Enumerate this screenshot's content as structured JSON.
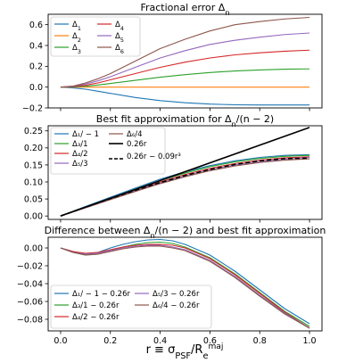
{
  "chart_data": [
    {
      "type": "line",
      "title": "Fractional error Δ",
      "title_sub": "n",
      "ylim": [
        -0.2,
        0.7
      ],
      "yticks": [
        "−0.2",
        "0.0",
        "0.2",
        "0.4",
        "0.6"
      ],
      "xlim": [
        -0.05,
        1.05
      ],
      "legend": "top-left, 2 columns",
      "series": [
        {
          "name": "Δ",
          "sub": "1",
          "color": "#1f77b4",
          "x": [
            0,
            0.05,
            0.1,
            0.15,
            0.2,
            0.3,
            0.4,
            0.5,
            0.6,
            0.7,
            0.8,
            0.9,
            1.0
          ],
          "y": [
            0,
            -0.008,
            -0.02,
            -0.04,
            -0.06,
            -0.1,
            -0.13,
            -0.15,
            -0.163,
            -0.17,
            -0.172,
            -0.172,
            -0.172
          ]
        },
        {
          "name": "Δ",
          "sub": "2",
          "color": "#ff7f0e",
          "x": [
            0,
            1.0
          ],
          "y": [
            0,
            0
          ]
        },
        {
          "name": "Δ",
          "sub": "3",
          "color": "#2ca02c",
          "x": [
            0,
            0.05,
            0.1,
            0.15,
            0.2,
            0.3,
            0.4,
            0.5,
            0.6,
            0.7,
            0.8,
            0.9,
            1.0
          ],
          "y": [
            0,
            0.002,
            0.008,
            0.02,
            0.035,
            0.065,
            0.095,
            0.12,
            0.14,
            0.155,
            0.165,
            0.172,
            0.175
          ]
        },
        {
          "name": "Δ",
          "sub": "4",
          "color": "#d62728",
          "x": [
            0,
            0.05,
            0.1,
            0.15,
            0.2,
            0.3,
            0.4,
            0.5,
            0.6,
            0.7,
            0.8,
            0.9,
            1.0
          ],
          "y": [
            0,
            0.005,
            0.018,
            0.04,
            0.07,
            0.13,
            0.19,
            0.24,
            0.28,
            0.31,
            0.33,
            0.345,
            0.355
          ]
        },
        {
          "name": "Δ",
          "sub": "5",
          "color": "#9467bd",
          "x": [
            0,
            0.05,
            0.1,
            0.15,
            0.2,
            0.3,
            0.4,
            0.5,
            0.6,
            0.7,
            0.8,
            0.9,
            1.0
          ],
          "y": [
            0,
            0.008,
            0.03,
            0.06,
            0.1,
            0.19,
            0.28,
            0.35,
            0.41,
            0.45,
            0.48,
            0.505,
            0.52
          ]
        },
        {
          "name": "Δ",
          "sub": "6",
          "color": "#8c564b",
          "x": [
            0,
            0.05,
            0.1,
            0.15,
            0.2,
            0.3,
            0.4,
            0.5,
            0.6,
            0.7,
            0.8,
            0.9,
            1.0
          ],
          "y": [
            0,
            0.01,
            0.04,
            0.08,
            0.13,
            0.25,
            0.37,
            0.46,
            0.54,
            0.6,
            0.63,
            0.655,
            0.67
          ]
        }
      ]
    },
    {
      "type": "line",
      "title": "Best fit approximation for Δ",
      "title_sub": "n",
      "title_tail": "/(n − 2)",
      "ylim": [
        -0.01,
        0.265
      ],
      "yticks": [
        "0.00",
        "0.05",
        "0.10",
        "0.15",
        "0.20",
        "0.25"
      ],
      "xlim": [
        -0.05,
        1.05
      ],
      "legend": "top-left, 2 columns",
      "series": [
        {
          "label": "Δ₁/ − 1",
          "color": "#1f77b4",
          "x": [
            0,
            0.1,
            0.2,
            0.3,
            0.4,
            0.5,
            0.6,
            0.7,
            0.8,
            0.9,
            1.0
          ],
          "y": [
            0,
            0.028,
            0.055,
            0.082,
            0.108,
            0.13,
            0.148,
            0.162,
            0.172,
            0.178,
            0.18
          ]
        },
        {
          "label": "Δ₃/1",
          "color": "#2ca02c",
          "x": [
            0,
            0.1,
            0.2,
            0.3,
            0.4,
            0.5,
            0.6,
            0.7,
            0.8,
            0.9,
            1.0
          ],
          "y": [
            0,
            0.026,
            0.052,
            0.079,
            0.104,
            0.126,
            0.145,
            0.159,
            0.169,
            0.175,
            0.178
          ]
        },
        {
          "label": "Δ₄/2",
          "color": "#d62728",
          "x": [
            0,
            0.1,
            0.2,
            0.3,
            0.4,
            0.5,
            0.6,
            0.7,
            0.8,
            0.9,
            1.0
          ],
          "y": [
            0,
            0.025,
            0.05,
            0.076,
            0.1,
            0.122,
            0.14,
            0.154,
            0.164,
            0.171,
            0.174
          ]
        },
        {
          "label": "Δ₅/3",
          "color": "#9467bd",
          "x": [
            0,
            0.1,
            0.2,
            0.3,
            0.4,
            0.5,
            0.6,
            0.7,
            0.8,
            0.9,
            1.0
          ],
          "y": [
            0,
            0.024,
            0.049,
            0.074,
            0.097,
            0.118,
            0.136,
            0.15,
            0.16,
            0.167,
            0.172
          ]
        },
        {
          "label": "Δ₆/4",
          "color": "#8c564b",
          "x": [
            0,
            0.1,
            0.2,
            0.3,
            0.4,
            0.5,
            0.6,
            0.7,
            0.8,
            0.9,
            1.0
          ],
          "y": [
            0,
            0.024,
            0.048,
            0.072,
            0.095,
            0.115,
            0.133,
            0.147,
            0.157,
            0.164,
            0.168
          ]
        },
        {
          "label": "0.26r",
          "color": "#000000",
          "lw": 1.6,
          "x": [
            0,
            1.0
          ],
          "y": [
            0,
            0.26
          ]
        },
        {
          "label": "0.26r − 0.09r³",
          "color": "#000000",
          "dash": true,
          "lw": 1.6,
          "x": [
            0,
            0.1,
            0.2,
            0.3,
            0.4,
            0.5,
            0.6,
            0.7,
            0.8,
            0.9,
            1.0
          ],
          "y": [
            0,
            0.0259,
            0.0513,
            0.0756,
            0.0982,
            0.1188,
            0.1366,
            0.1513,
            0.1619,
            0.1684,
            0.17
          ]
        }
      ]
    },
    {
      "type": "line",
      "title": "Difference between Δ",
      "title_sub": "n",
      "title_tail": "/(n − 2) and best fit approximation",
      "ylim": [
        -0.093,
        0.012
      ],
      "yticks": [
        "0.00",
        "−0.02",
        "−0.04",
        "−0.06",
        "−0.08"
      ],
      "xlim": [
        -0.05,
        1.05
      ],
      "xticks": [
        "0.0",
        "0.2",
        "0.4",
        "0.6",
        "0.8",
        "1.0"
      ],
      "xlabel": "r ≡ σPSF/Re^maj",
      "legend": "lower-left, 2 columns",
      "series": [
        {
          "label": "Δ₁/ − 1 − 0.26r",
          "color": "#1f77b4",
          "x": [
            0,
            0.05,
            0.1,
            0.15,
            0.2,
            0.25,
            0.3,
            0.35,
            0.4,
            0.45,
            0.5,
            0.6,
            0.7,
            0.8,
            0.9,
            1.0
          ],
          "y": [
            0,
            -0.004,
            -0.007,
            -0.005,
            0,
            0.004,
            0.007,
            0.009,
            0.0095,
            0.008,
            0.004,
            -0.008,
            -0.026,
            -0.047,
            -0.068,
            -0.085
          ]
        },
        {
          "label": "Δ₃/1 − 0.26r",
          "color": "#2ca02c",
          "x": [
            0,
            0.05,
            0.1,
            0.15,
            0.2,
            0.25,
            0.3,
            0.35,
            0.4,
            0.45,
            0.5,
            0.6,
            0.7,
            0.8,
            0.9,
            1.0
          ],
          "y": [
            0,
            -0.005,
            -0.008,
            -0.007,
            -0.003,
            0.001,
            0.004,
            0.006,
            0.0065,
            0.005,
            0.001,
            -0.011,
            -0.029,
            -0.05,
            -0.071,
            -0.088
          ]
        },
        {
          "label": "Δ₄/2 − 0.26r",
          "color": "#d62728",
          "x": [
            0,
            0.05,
            0.1,
            0.15,
            0.2,
            0.25,
            0.3,
            0.35,
            0.4,
            0.45,
            0.5,
            0.6,
            0.7,
            0.8,
            0.9,
            1.0
          ],
          "y": [
            0,
            -0.004,
            -0.006,
            -0.005,
            -0.002,
            0.001,
            0.003,
            0.004,
            0.004,
            0.003,
            0,
            -0.012,
            -0.03,
            -0.051,
            -0.072,
            -0.09
          ]
        },
        {
          "label": "Δ₅/3 − 0.26r",
          "color": "#9467bd",
          "x": [
            0,
            0.05,
            0.1,
            0.15,
            0.2,
            0.25,
            0.3,
            0.35,
            0.4,
            0.45,
            0.5,
            0.6,
            0.7,
            0.8,
            0.9,
            1.0
          ],
          "y": [
            0,
            -0.005,
            -0.007,
            -0.006,
            -0.003,
            0,
            0.002,
            0.003,
            0.003,
            0.001,
            -0.002,
            -0.014,
            -0.032,
            -0.053,
            -0.073,
            -0.09
          ]
        },
        {
          "label": "Δ₆/4 − 0.26r",
          "color": "#8c564b",
          "x": [
            0,
            0.05,
            0.1,
            0.15,
            0.2,
            0.25,
            0.3,
            0.35,
            0.4,
            0.45,
            0.5,
            0.6,
            0.7,
            0.8,
            0.9,
            1.0
          ],
          "y": [
            0,
            -0.005,
            -0.008,
            -0.007,
            -0.004,
            -0.001,
            0.001,
            0.002,
            0.002,
            0,
            -0.003,
            -0.015,
            -0.033,
            -0.054,
            -0.074,
            -0.09
          ]
        }
      ]
    }
  ]
}
